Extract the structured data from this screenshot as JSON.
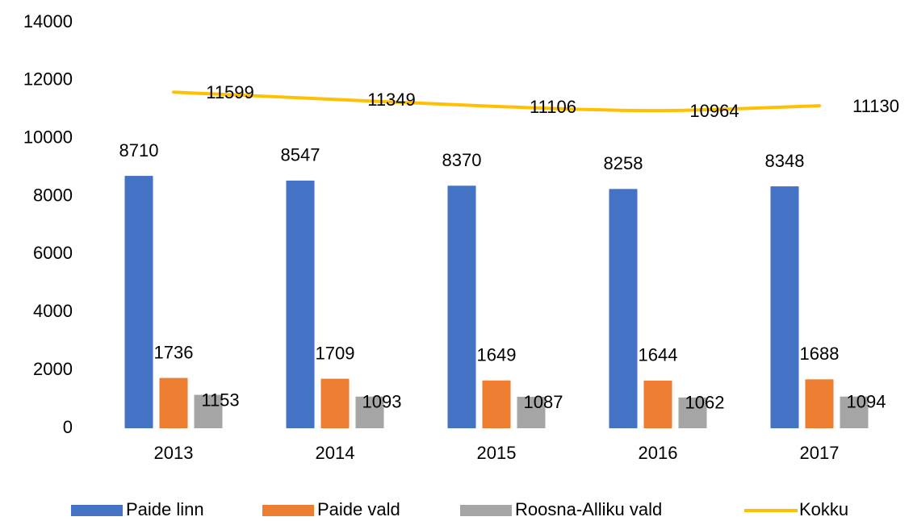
{
  "chart_data": {
    "type": "bar",
    "categories": [
      "2013",
      "2014",
      "2015",
      "2016",
      "2017"
    ],
    "series": [
      {
        "name": "Paide linn",
        "color": "#4472c4",
        "values": [
          8710,
          8547,
          8370,
          8258,
          8348
        ]
      },
      {
        "name": "Paide vald",
        "color": "#ed7d31",
        "values": [
          1736,
          1709,
          1649,
          1644,
          1688
        ]
      },
      {
        "name": "Roosna-Alliku vald",
        "color": "#a5a5a5",
        "values": [
          1153,
          1093,
          1087,
          1062,
          1094
        ]
      },
      {
        "name": "Kokku",
        "type": "line",
        "color": "#ffc000",
        "values": [
          11599,
          11349,
          11106,
          10964,
          11130
        ]
      }
    ],
    "ylim": [
      0,
      14000
    ],
    "yticks": [
      0,
      2000,
      4000,
      6000,
      8000,
      10000,
      12000,
      14000
    ],
    "grid": false,
    "legend": "bottom"
  }
}
